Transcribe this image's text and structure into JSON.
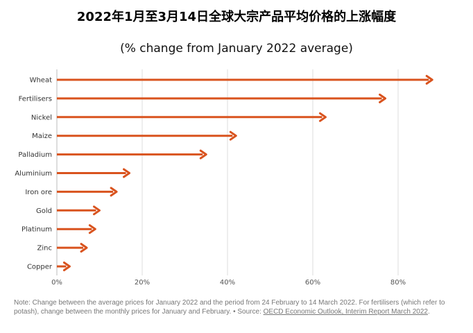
{
  "header": {
    "title": "2022年1月至3月14日全球大宗产品平均价格的上涨幅度",
    "subtitle": "(% change from January 2022 average)"
  },
  "note": {
    "text": "Note: Change between the average prices for January 2022 and the period from 24 February to 14 March 2022. For fertilisers (which refer to potash), change between the monthly prices for January and February. • Source: ",
    "link": "OECD Economic Outlook, Interim Report March 2022",
    "end": "."
  },
  "colors": {
    "bar": "#d9531e",
    "grid": "#dddddd",
    "text": "#555555"
  },
  "chart_data": {
    "type": "bar",
    "orientation": "horizontal",
    "categories": [
      "Wheat",
      "Fertilisers",
      "Nickel",
      "Maize",
      "Palladium",
      "Aluminium",
      "Iron ore",
      "Gold",
      "Platinum",
      "Zinc",
      "Copper"
    ],
    "values": [
      88,
      77,
      63,
      42,
      35,
      17,
      14,
      10,
      9,
      7,
      3
    ],
    "xlim": [
      0,
      90
    ],
    "xticks": [
      0,
      20,
      40,
      60,
      80
    ],
    "xtick_labels": [
      "0%",
      "20%",
      "40%",
      "60%",
      "80%"
    ],
    "grid": "vertical"
  }
}
